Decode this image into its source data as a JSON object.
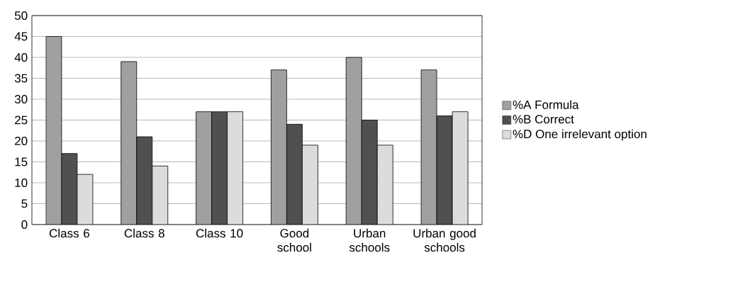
{
  "chart_data": {
    "type": "bar",
    "categories": [
      "Class 6",
      "Class 8",
      "Class 10",
      "Good school",
      "Urban schools",
      "Urban good schools"
    ],
    "series": [
      {
        "name": "%A Formula",
        "color": "#a0a0a0",
        "values": [
          45,
          39,
          27,
          37,
          40,
          37
        ]
      },
      {
        "name": "%B Correct",
        "color": "#505050",
        "values": [
          17,
          21,
          27,
          24,
          25,
          26
        ]
      },
      {
        "name": "%D One irrelevant option",
        "color": "#dcdcdc",
        "values": [
          12,
          14,
          27,
          19,
          19,
          27
        ]
      }
    ],
    "ylim": [
      0,
      50
    ],
    "yticks": [
      0,
      5,
      10,
      15,
      20,
      25,
      30,
      35,
      40,
      45,
      50
    ],
    "grid": "y",
    "legend": "right"
  }
}
